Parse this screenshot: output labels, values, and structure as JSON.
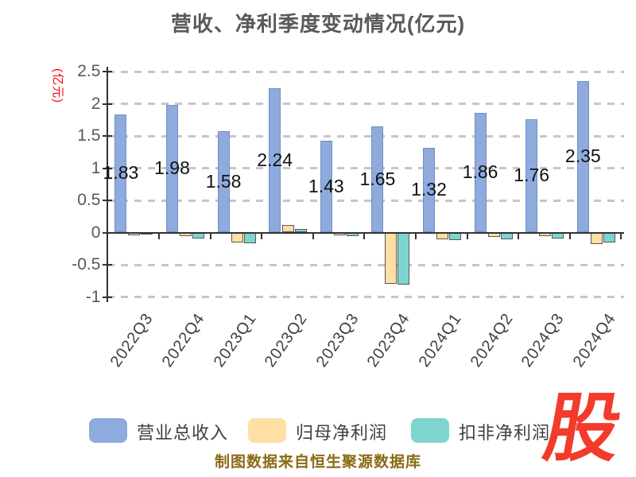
{
  "title": "营收、净利季度变动情况(亿元)",
  "y_axis_title": "(亿元)",
  "source_caption": "制图数据来自恒生聚源数据库",
  "logo_text": "股",
  "colors": {
    "revenue_bar": "#8FAADC",
    "net_profit_bar": "#FFDFA3",
    "deducted_net_profit_bar": "#7ED5D0",
    "axis": "#333333",
    "grid": "#C6C6C6",
    "title_text": "#595959",
    "caption_text": "#8B6914",
    "y_axis_title_text": "#FF0000",
    "logo_red": "#F23B2B"
  },
  "legend": {
    "items": [
      {
        "label": "营业总收入",
        "color": "#8FAADC"
      },
      {
        "label": "归母净利润",
        "color": "#FFDFA3"
      },
      {
        "label": "扣非净利润",
        "color": "#7ED5D0"
      }
    ]
  },
  "chart_data": {
    "type": "bar",
    "title": "营收、净利季度变动情况(亿元)",
    "categories": [
      "2022Q3",
      "2022Q4",
      "2023Q1",
      "2023Q2",
      "2023Q3",
      "2023Q4",
      "2024Q1",
      "2024Q2",
      "2024Q3",
      "2024Q4"
    ],
    "series": [
      {
        "name": "营业总收入",
        "color": "#8FAADC",
        "values": [
          1.83,
          1.98,
          1.58,
          2.24,
          1.43,
          1.65,
          1.32,
          1.86,
          1.76,
          2.35
        ],
        "data_labels": [
          "1.83",
          "1.98",
          "1.58",
          "2.24",
          "1.43",
          "1.65",
          "1.32",
          "1.86",
          "1.76",
          "2.35"
        ]
      },
      {
        "name": "归母净利润",
        "color": "#FFDFA3",
        "values": [
          -0.04,
          -0.06,
          -0.15,
          0.12,
          -0.04,
          -0.8,
          -0.1,
          -0.07,
          -0.06,
          -0.18
        ]
      },
      {
        "name": "扣非净利润",
        "color": "#7ED5D0",
        "values": [
          -0.03,
          -0.09,
          -0.17,
          0.06,
          -0.06,
          -0.81,
          -0.12,
          -0.1,
          -0.09,
          -0.15
        ]
      }
    ],
    "xlabel": "",
    "ylabel": "(亿元)",
    "y_ticks": [
      2.5,
      2,
      1.5,
      1,
      0.5,
      0,
      -0.5,
      -1
    ],
    "y_tick_labels": [
      "2.5",
      "2",
      "1.5",
      "1",
      "0.5",
      "0",
      "-0.5",
      "-1"
    ],
    "ylim": [
      -1,
      2.5
    ],
    "grid": "dashed-horizontal",
    "legend_position": "bottom"
  }
}
